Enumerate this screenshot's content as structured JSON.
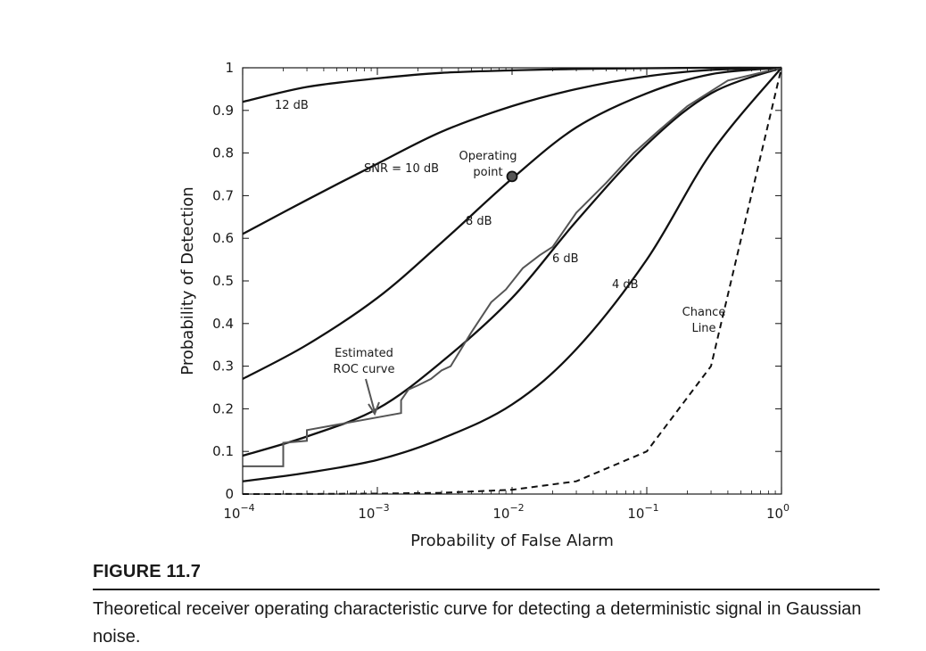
{
  "figure": {
    "label": "FIGURE 11.7",
    "caption": "Theoretical receiver operating characteristic curve for detecting a deterministic signal in Gaussian noise."
  },
  "chart_data": {
    "type": "line",
    "xlabel": "Probability of False Alarm",
    "ylabel": "Probability of Detection",
    "xscale": "log",
    "xlim": [
      0.0001,
      1
    ],
    "ylim": [
      0,
      1
    ],
    "x_ticks": [
      {
        "base": "10",
        "exp": "−4",
        "value": 0.0001
      },
      {
        "base": "10",
        "exp": "−3",
        "value": 0.001
      },
      {
        "base": "10",
        "exp": "−2",
        "value": 0.01
      },
      {
        "base": "10",
        "exp": "−1",
        "value": 0.1
      },
      {
        "base": "10",
        "exp": "0",
        "value": 1
      }
    ],
    "y_ticks": [
      "0",
      "0.1",
      "0.2",
      "0.3",
      "0.4",
      "0.5",
      "0.6",
      "0.7",
      "0.8",
      "0.9",
      "1"
    ],
    "grid": false,
    "line_color": "#111111",
    "estimate_color": "#555555",
    "series": [
      {
        "name": "12 dB",
        "style": "solid",
        "x": [
          0.0001,
          0.0003,
          0.001,
          0.003,
          0.01,
          0.03,
          0.1,
          0.3,
          1
        ],
        "y": [
          0.92,
          0.955,
          0.975,
          0.988,
          0.994,
          0.997,
          0.999,
          1.0,
          1.0
        ]
      },
      {
        "name": "SNR = 10 dB",
        "style": "solid",
        "x": [
          0.0001,
          0.0003,
          0.001,
          0.003,
          0.01,
          0.03,
          0.1,
          0.3,
          1
        ],
        "y": [
          0.61,
          0.69,
          0.775,
          0.85,
          0.91,
          0.95,
          0.98,
          0.995,
          1.0
        ]
      },
      {
        "name": "8 dB",
        "style": "solid",
        "x": [
          0.0001,
          0.0003,
          0.001,
          0.003,
          0.01,
          0.03,
          0.1,
          0.3,
          1
        ],
        "y": [
          0.27,
          0.35,
          0.46,
          0.59,
          0.74,
          0.86,
          0.94,
          0.985,
          1.0
        ]
      },
      {
        "name": "6 dB",
        "style": "solid",
        "x": [
          0.0001,
          0.0003,
          0.001,
          0.003,
          0.01,
          0.03,
          0.1,
          0.3,
          1
        ],
        "y": [
          0.09,
          0.135,
          0.2,
          0.31,
          0.46,
          0.64,
          0.82,
          0.94,
          1.0
        ]
      },
      {
        "name": "4 dB",
        "style": "solid",
        "x": [
          0.0001,
          0.0003,
          0.001,
          0.003,
          0.01,
          0.03,
          0.1,
          0.3,
          1
        ],
        "y": [
          0.03,
          0.05,
          0.08,
          0.13,
          0.21,
          0.34,
          0.55,
          0.8,
          1.0
        ]
      },
      {
        "name": "Chance Line",
        "style": "dashed",
        "x": [
          0.0001,
          0.0003,
          0.001,
          0.003,
          0.01,
          0.03,
          0.1,
          0.3,
          1
        ],
        "y": [
          0.0001,
          0.0003,
          0.001,
          0.003,
          0.01,
          0.03,
          0.1,
          0.3,
          1.0
        ]
      },
      {
        "name": "Estimated ROC curve",
        "style": "step",
        "x": [
          0.0001,
          0.0002,
          0.0002,
          0.0003,
          0.0003,
          0.0015,
          0.0015,
          0.0017,
          0.002,
          0.0025,
          0.003,
          0.0035,
          0.004,
          0.005,
          0.007,
          0.009,
          0.012,
          0.016,
          0.02,
          0.03,
          0.05,
          0.08,
          0.12,
          0.2,
          0.4,
          1
        ],
        "y": [
          0.065,
          0.065,
          0.12,
          0.125,
          0.15,
          0.19,
          0.22,
          0.245,
          0.255,
          0.27,
          0.29,
          0.3,
          0.33,
          0.38,
          0.45,
          0.48,
          0.53,
          0.56,
          0.58,
          0.66,
          0.73,
          0.8,
          0.85,
          0.91,
          0.97,
          1.0
        ]
      }
    ],
    "operating_point": {
      "x": 0.01,
      "y": 0.745
    },
    "annotations": {
      "operating_point": [
        "Operating",
        "point"
      ],
      "estimated": [
        "Estimated",
        "ROC curve"
      ],
      "chance": [
        "Chance",
        "Line"
      ]
    }
  }
}
